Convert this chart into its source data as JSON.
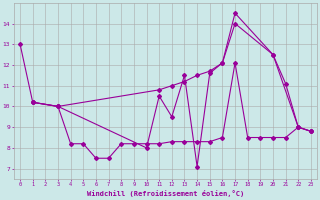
{
  "title": "",
  "xlabel": "Windchill (Refroidissement éolien,°C)",
  "background_color": "#cce8e8",
  "grid_color": "#aaaaaa",
  "line_color": "#990099",
  "ylim": [
    6.5,
    15.0
  ],
  "yticks": [
    7,
    8,
    9,
    10,
    11,
    12,
    13,
    14
  ],
  "line1_x": [
    0,
    1,
    3,
    10,
    11,
    12,
    13,
    14,
    15,
    16,
    17,
    20,
    22,
    23
  ],
  "line1_y": [
    13.0,
    10.2,
    10.0,
    8.0,
    10.5,
    9.5,
    11.5,
    7.1,
    11.6,
    12.1,
    14.5,
    12.5,
    9.0,
    8.8
  ],
  "line2_x": [
    1,
    3,
    4,
    5,
    6,
    7,
    8,
    9,
    10,
    11,
    12,
    13,
    14,
    15,
    16,
    17,
    18,
    19,
    20,
    21,
    22,
    23
  ],
  "line2_y": [
    10.2,
    10.0,
    8.2,
    8.2,
    7.5,
    7.5,
    8.2,
    8.2,
    8.2,
    8.2,
    8.3,
    8.3,
    8.3,
    8.3,
    8.5,
    12.1,
    8.5,
    8.5,
    8.5,
    8.5,
    9.0,
    8.8
  ],
  "line3_x": [
    1,
    3,
    11,
    12,
    13,
    14,
    15,
    16,
    17,
    20,
    21,
    22,
    23
  ],
  "line3_y": [
    10.2,
    10.0,
    10.8,
    11.0,
    11.2,
    11.5,
    11.7,
    12.1,
    14.0,
    12.5,
    11.1,
    9.0,
    8.8
  ],
  "figsize": [
    3.2,
    2.0
  ],
  "dpi": 100
}
